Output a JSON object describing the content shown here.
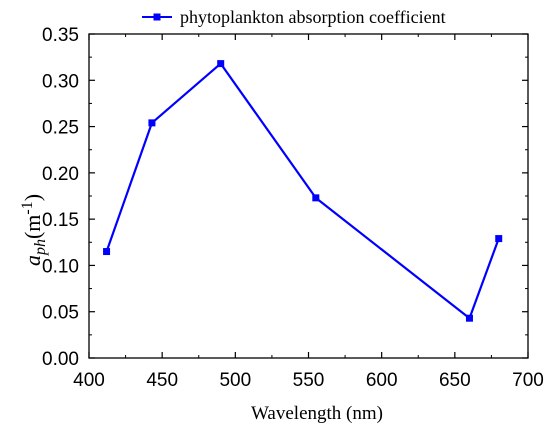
{
  "chart_data": {
    "type": "line",
    "xlabel": "Wavelength (nm)",
    "ylabel": {
      "symbol": "a",
      "subscript": "ph",
      "unit_open": "(m",
      "unit_exp": "-1",
      "unit_close": ")"
    },
    "xlim": [
      400,
      700
    ],
    "ylim": [
      0.0,
      0.35
    ],
    "xticks": [
      400,
      450,
      500,
      550,
      600,
      650,
      700
    ],
    "xtick_labels": [
      "400",
      "450",
      "500",
      "550",
      "600",
      "650",
      "700"
    ],
    "yticks": [
      0.0,
      0.05,
      0.1,
      0.15,
      0.2,
      0.25,
      0.3,
      0.35
    ],
    "ytick_labels": [
      "0.00",
      "0.05",
      "0.10",
      "0.15",
      "0.20",
      "0.25",
      "0.30",
      "0.35"
    ],
    "grid": false,
    "legend_position": "top",
    "series": [
      {
        "name": "phytoplankton absorption coefficient",
        "color": "#0000ff",
        "marker": "square",
        "x": [
          412,
          443,
          490,
          555,
          660,
          680
        ],
        "y": [
          0.115,
          0.254,
          0.318,
          0.173,
          0.043,
          0.129
        ]
      }
    ]
  }
}
